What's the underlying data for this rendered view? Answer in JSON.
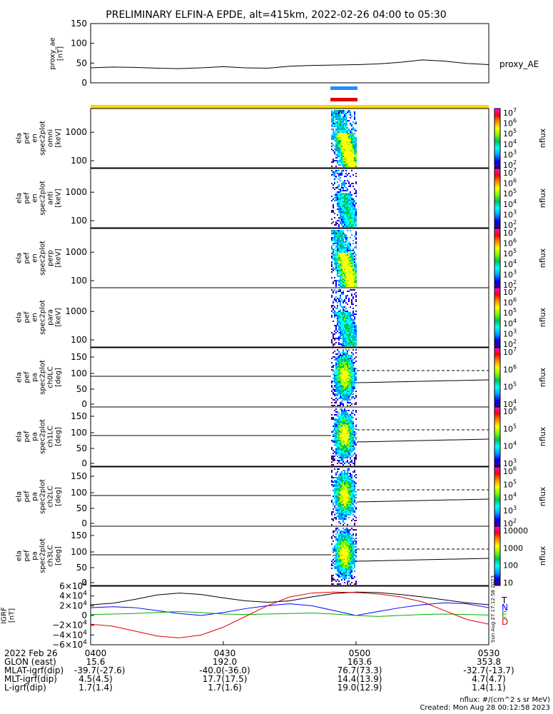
{
  "title": "PRELIMINARY ELFIN-A EPDE, alt=415km, 2022-02-26 04:00 to 05:30",
  "colors": {
    "bar_blue": "#1e90ff",
    "bar_red": "#e00000",
    "bar_yellow": "#ffd700",
    "grf_T": "#000000",
    "grf_N": "#0000ff",
    "grf_E": "#00b000",
    "grf_D": "#e00000"
  },
  "chart_data": [
    {
      "type": "line",
      "ylabel": "proxy_ae [nT]",
      "legend": "proxy_AE",
      "yticks": [
        "150",
        "100",
        "50",
        "0"
      ],
      "ylim": [
        0,
        150
      ],
      "x": [
        "0400",
        "0405",
        "0410",
        "0415",
        "0420",
        "0425",
        "0430",
        "0435",
        "0440",
        "0445",
        "0450",
        "0455",
        "0500",
        "0505",
        "0510",
        "0515",
        "0520",
        "0525",
        "0530"
      ],
      "values": [
        38,
        40,
        39,
        37,
        36,
        38,
        41,
        38,
        37,
        42,
        44,
        45,
        46,
        48,
        52,
        58,
        55,
        49,
        46
      ]
    },
    {
      "type": "heatmap",
      "ylabel": [
        "ela",
        "pef",
        "en",
        "spec2plot",
        "omni",
        "[keV]"
      ],
      "yticks": [
        "1000",
        "100"
      ],
      "scale": "log",
      "colorbar_ticks": [
        "10^7",
        "10^6",
        "10^5",
        "10^4",
        "10^3",
        "10^2"
      ],
      "colorbar_label": "nflux"
    },
    {
      "type": "heatmap",
      "ylabel": [
        "ela",
        "pef",
        "en",
        "spec2plot",
        "anti",
        "[keV]"
      ],
      "yticks": [
        "1000",
        "100"
      ],
      "scale": "log",
      "colorbar_ticks": [
        "10^7",
        "10^6",
        "10^5",
        "10^4",
        "10^3",
        "10^2"
      ],
      "colorbar_label": "nflux"
    },
    {
      "type": "heatmap",
      "ylabel": [
        "ela",
        "pef",
        "en",
        "spec2plot",
        "perp",
        "[keV]"
      ],
      "yticks": [
        "1000",
        "100"
      ],
      "scale": "log",
      "colorbar_ticks": [
        "10^7",
        "10^6",
        "10^5",
        "10^4",
        "10^3",
        "10^2"
      ],
      "colorbar_label": "nflux"
    },
    {
      "type": "heatmap",
      "ylabel": [
        "ela",
        "pef",
        "en",
        "spec2plot",
        "para",
        "[keV]"
      ],
      "yticks": [
        "1000",
        "100"
      ],
      "scale": "log",
      "colorbar_ticks": [
        "10^7",
        "10^6",
        "10^5",
        "10^4",
        "10^3",
        "10^2"
      ],
      "colorbar_label": "nflux"
    },
    {
      "type": "heatmap",
      "ylabel": [
        "ela",
        "pef",
        "pa",
        "spec2plot",
        "ch0LC",
        "[deg]"
      ],
      "yticks": [
        "150",
        "100",
        "50",
        "0"
      ],
      "colorbar_ticks": [
        "10^7",
        "10^6",
        "10^5",
        "10^4"
      ],
      "colorbar_label": "nflux"
    },
    {
      "type": "heatmap",
      "ylabel": [
        "ela",
        "pef",
        "pa",
        "spec2plot",
        "ch1LC",
        "[deg]"
      ],
      "yticks": [
        "150",
        "100",
        "50",
        "0"
      ],
      "colorbar_ticks": [
        "10^6",
        "10^5",
        "10^4",
        "10^3"
      ],
      "colorbar_label": "nflux"
    },
    {
      "type": "heatmap",
      "ylabel": [
        "ela",
        "pef",
        "pa",
        "spec2plot",
        "ch2LC",
        "[deg]"
      ],
      "yticks": [
        "150",
        "100",
        "50",
        "0"
      ],
      "colorbar_ticks": [
        "10^6",
        "10^5",
        "10^4",
        "10^3",
        "10^2"
      ],
      "colorbar_label": "nflux"
    },
    {
      "type": "heatmap",
      "ylabel": [
        "ela",
        "pef",
        "pa",
        "spec2plot",
        "ch3LC",
        "[deg]"
      ],
      "yticks": [
        "150",
        "100",
        "50",
        "0"
      ],
      "colorbar_ticks": [
        "10000",
        "1000",
        "100",
        "10"
      ],
      "colorbar_label": "nflux"
    },
    {
      "type": "line",
      "ylabel": "IGRF [nT]",
      "yticks": [
        "6×10^4",
        "4×10^4",
        "2×10^4",
        "0",
        "−2×10^4",
        "−4×10^4",
        "−6×10^4"
      ],
      "ylim": [
        -60000,
        60000
      ],
      "x": [
        "0400",
        "0405",
        "0410",
        "0415",
        "0420",
        "0425",
        "0430",
        "0435",
        "0440",
        "0445",
        "0450",
        "0455",
        "0500",
        "0505",
        "0510",
        "0515",
        "0520",
        "0525",
        "0530"
      ],
      "series": [
        {
          "name": "T",
          "values": [
            22000,
            25000,
            33000,
            42000,
            46000,
            43000,
            36000,
            30000,
            27000,
            30000,
            38000,
            45000,
            48000,
            47000,
            43000,
            38000,
            32000,
            26000,
            22000
          ]
        },
        {
          "name": "N",
          "values": [
            16000,
            18000,
            16000,
            10000,
            4000,
            0,
            6000,
            14000,
            20000,
            24000,
            20000,
            10000,
            0,
            8000,
            16000,
            22000,
            26000,
            24000,
            16000
          ]
        },
        {
          "name": "E",
          "values": [
            2000,
            3000,
            4000,
            6000,
            8000,
            6000,
            3000,
            2000,
            3000,
            4000,
            5000,
            3000,
            0,
            -2000,
            0,
            2000,
            3000,
            2000,
            1000
          ]
        },
        {
          "name": "D",
          "values": [
            -18000,
            -22000,
            -32000,
            -42000,
            -46000,
            -40000,
            -24000,
            -2000,
            20000,
            38000,
            46000,
            48000,
            47000,
            44000,
            38000,
            28000,
            10000,
            -8000,
            -18000
          ]
        }
      ]
    }
  ],
  "side_label": "Sun Aug 27 17:12:58 2023",
  "footer": {
    "row_labels": [
      "2022 Feb 26",
      "GLON (east)",
      "MLAT-igrf(dip)",
      "MLT-igrf(dip)",
      "L-igrf(dip)"
    ],
    "columns": [
      [
        "0400",
        "15.6",
        "-39.7(-27.6)",
        "4.5(4.5)",
        "1.7(1.4)"
      ],
      [
        "0430",
        "192.0",
        "-40.0(-36.0)",
        "17.7(17.5)",
        "1.7(1.6)"
      ],
      [
        "0500",
        "163.6",
        "76.7(73.3)",
        "14.4(13.9)",
        "19.0(12.9)"
      ],
      [
        "0530",
        "353.8",
        "-32.7(-13.7)",
        "4.7(4.7)",
        "1.4(1.1)"
      ]
    ],
    "units_note": "nflux: #/(cm^2 s sr MeV)",
    "created": "Created: Mon Aug 28 00:12:58 2023"
  }
}
